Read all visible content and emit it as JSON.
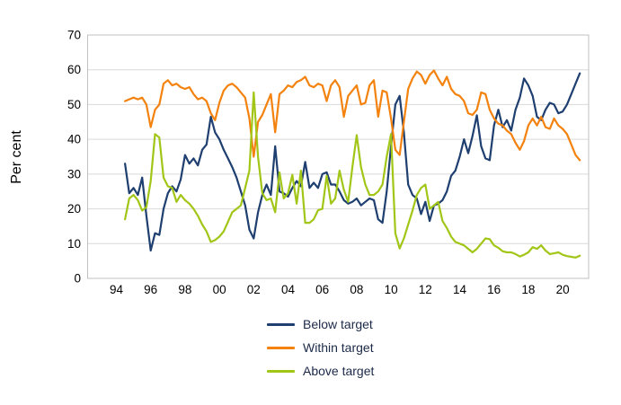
{
  "chart_data": {
    "type": "line",
    "title": "",
    "xlabel": "",
    "ylabel": "Per cent",
    "ylim": [
      0,
      70
    ],
    "yticks": [
      0,
      10,
      20,
      30,
      40,
      50,
      60,
      70
    ],
    "grid": true,
    "legend_position": "bottom-center",
    "background_color": "#ffffff",
    "gridline_color": "#d9d9d9",
    "border_color": "#c0c0c0",
    "xtick_labels": [
      "94",
      "96",
      "98",
      "00",
      "02",
      "04",
      "06",
      "08",
      "10",
      "12",
      "14",
      "16",
      "18",
      "20"
    ],
    "xtick_years": [
      1994,
      1996,
      1998,
      2000,
      2002,
      2004,
      2006,
      2008,
      2010,
      2012,
      2014,
      2016,
      2018,
      2020
    ],
    "x_start": 1994.5,
    "x_step": 0.25,
    "x_end": 2021.0,
    "series": [
      {
        "name": "Below target",
        "color": "#1e3f6f",
        "values": [
          33,
          24.5,
          26,
          24,
          29,
          18,
          8,
          13,
          12.5,
          20,
          24.5,
          26.5,
          25,
          28.5,
          35.5,
          33,
          34.5,
          32.5,
          37,
          38.5,
          46.5,
          42,
          40,
          37,
          34.5,
          32,
          29,
          25,
          21,
          14,
          11.5,
          19,
          24,
          27,
          24,
          38,
          25,
          24.5,
          23.5,
          26,
          28,
          26.5,
          33.5,
          26,
          27.5,
          26,
          30,
          30.5,
          27,
          27,
          25,
          22.5,
          21.5,
          22,
          23,
          21,
          22,
          23,
          22.5,
          17,
          16,
          25,
          38,
          50,
          52.5,
          42,
          27,
          24,
          23,
          18.5,
          22,
          16.5,
          21,
          21.5,
          22.5,
          25,
          29.5,
          31,
          35,
          40,
          36,
          41,
          46.9,
          38,
          34.5,
          34,
          44,
          48.5,
          43.5,
          45.5,
          42.5,
          48.5,
          52,
          57.5,
          55.5,
          52.5,
          46.5,
          45.5,
          48.5,
          50.5,
          50,
          47.5,
          48,
          50,
          53,
          56,
          59
        ]
      },
      {
        "name": "Within target",
        "color": "#f3820e",
        "values": [
          51,
          51.5,
          52,
          51.5,
          52,
          50,
          43.5,
          48.5,
          50,
          56,
          57,
          55.5,
          56,
          55,
          54.5,
          55,
          53,
          51.5,
          52,
          51,
          47.5,
          45.5,
          50.5,
          54,
          55.5,
          56,
          55,
          53.5,
          52,
          46,
          35,
          45,
          47,
          50,
          53,
          42,
          53,
          54,
          55.5,
          55,
          56.5,
          57,
          58,
          55.5,
          55,
          56,
          55.5,
          51,
          55.5,
          57,
          55,
          46.5,
          52.5,
          54,
          55.5,
          50,
          50.5,
          55.5,
          57,
          46.5,
          54,
          53.5,
          46,
          37,
          35.5,
          45,
          54.5,
          57.5,
          59.5,
          58.5,
          56,
          58.5,
          59.8,
          57.5,
          55.5,
          58,
          54.5,
          53,
          52.5,
          51,
          47.5,
          47,
          48.5,
          53.5,
          53,
          48.5,
          46,
          44.5,
          44,
          42.5,
          41.5,
          39,
          37,
          39.5,
          44,
          46,
          44,
          46.5,
          43.5,
          43,
          46,
          44,
          43,
          41.5,
          38.5,
          35.5,
          34
        ]
      },
      {
        "name": "Above target",
        "color": "#a2c617",
        "values": [
          17,
          23,
          24,
          22.5,
          19.5,
          20.5,
          28,
          41.5,
          40.5,
          29,
          26.5,
          26,
          22,
          24,
          22.5,
          21.5,
          20,
          18,
          15.5,
          13.5,
          10.5,
          11,
          12,
          13.5,
          16.3,
          19,
          20,
          21,
          26,
          31,
          53.5,
          35,
          24.5,
          22.5,
          23,
          19,
          30.5,
          23,
          24.5,
          29.8,
          21.5,
          31,
          16,
          16,
          17,
          19.6,
          20,
          29.5,
          21.5,
          23,
          31,
          25.5,
          22,
          32,
          41.2,
          32,
          27,
          24,
          24,
          25,
          27,
          35,
          41.5,
          13,
          8.6,
          11.5,
          15.5,
          19.5,
          24,
          26,
          27,
          20,
          21,
          22,
          16.5,
          14.5,
          12,
          10.5,
          10,
          9.5,
          8.5,
          7.5,
          8.5,
          10,
          11.5,
          11.3,
          9.5,
          8.8,
          7.8,
          7.5,
          7.5,
          7,
          6.3,
          6.8,
          7.5,
          9,
          8.5,
          9.5,
          8,
          7,
          7.2,
          7.5,
          6.8,
          6.4,
          6.2,
          6,
          6.5
        ]
      }
    ]
  },
  "legend": {
    "items": [
      {
        "label": "Below target"
      },
      {
        "label": "Within target"
      },
      {
        "label": "Above target"
      }
    ]
  }
}
